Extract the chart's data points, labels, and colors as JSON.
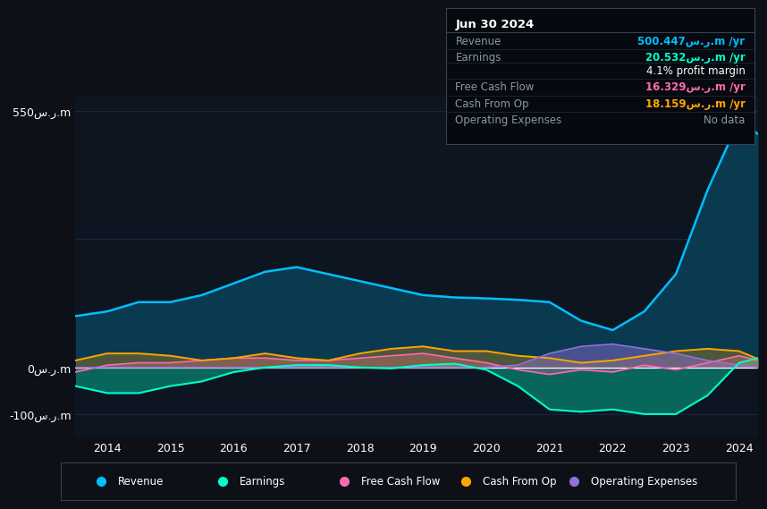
{
  "bg_color": "#0d1117",
  "plot_bg_color": "#0d1520",
  "years": [
    2013.5,
    2014,
    2014.5,
    2015,
    2015.5,
    2016,
    2016.5,
    2017,
    2017.5,
    2018,
    2018.5,
    2019,
    2019.5,
    2020,
    2020.5,
    2021,
    2021.5,
    2022,
    2022.5,
    2023,
    2023.5,
    2024,
    2024.3
  ],
  "revenue": [
    110,
    120,
    140,
    140,
    155,
    180,
    205,
    215,
    200,
    185,
    170,
    155,
    150,
    148,
    145,
    140,
    100,
    80,
    120,
    200,
    380,
    530,
    500
  ],
  "earnings": [
    -40,
    -55,
    -55,
    -40,
    -30,
    -10,
    0,
    5,
    5,
    0,
    -2,
    5,
    8,
    -5,
    -40,
    -90,
    -95,
    -90,
    -100,
    -100,
    -60,
    10,
    20
  ],
  "free_cash_flow": [
    -10,
    5,
    10,
    10,
    15,
    20,
    20,
    15,
    15,
    20,
    25,
    30,
    20,
    10,
    -5,
    -15,
    -5,
    -10,
    5,
    -5,
    10,
    25,
    15
  ],
  "cash_from_op": [
    15,
    30,
    30,
    25,
    15,
    20,
    30,
    20,
    15,
    30,
    40,
    45,
    35,
    35,
    25,
    20,
    10,
    15,
    25,
    35,
    40,
    35,
    18
  ],
  "operating_exp": [
    0,
    0,
    0,
    0,
    0,
    0,
    0,
    0,
    0,
    0,
    0,
    0,
    0,
    0,
    5,
    30,
    45,
    50,
    40,
    30,
    15,
    5,
    0
  ],
  "revenue_color": "#00bfff",
  "earnings_color": "#00ffcc",
  "fcf_color": "#ff69b4",
  "cashop_color": "#ffa500",
  "opex_color": "#9370db",
  "grid_color": "#1e3050",
  "zero_line_color": "#ffffff",
  "text_color": "#ffffff",
  "dim_text_color": "#8899aa",
  "ylim_min": -150,
  "ylim_max": 580,
  "info_box_title": "Jun 30 2024",
  "info_box_rows": [
    {
      "label": "Revenue",
      "value": "500.447س.ر.m /yr",
      "value_color": "#00bfff"
    },
    {
      "label": "Earnings",
      "value": "20.532س.ر.m /yr",
      "value_color": "#00ffcc"
    },
    {
      "label": "",
      "value": "4.1% profit margin",
      "value_color": "#ffffff"
    },
    {
      "label": "Free Cash Flow",
      "value": "16.329س.ر.m /yr",
      "value_color": "#ff69b4"
    },
    {
      "label": "Cash From Op",
      "value": "18.159س.ر.m /yr",
      "value_color": "#ffa500"
    },
    {
      "label": "Operating Expenses",
      "value": "No data",
      "value_color": "#8899aa"
    }
  ],
  "legend": [
    {
      "label": "Revenue",
      "color": "#00bfff"
    },
    {
      "label": "Earnings",
      "color": "#00ffcc"
    },
    {
      "label": "Free Cash Flow",
      "color": "#ff69b4"
    },
    {
      "label": "Cash From Op",
      "color": "#ffa500"
    },
    {
      "label": "Operating Expenses",
      "color": "#9370db"
    }
  ],
  "x_tick_years": [
    2014,
    2015,
    2016,
    2017,
    2018,
    2019,
    2020,
    2021,
    2022,
    2023,
    2024
  ],
  "yticks": [
    -100,
    0,
    550
  ],
  "ytick_labels": [
    "-100س.ر.m",
    "0س.ر.m",
    "550س.ر.m"
  ],
  "infobox_bg": "#06090f",
  "infobox_border": "#334455",
  "divider_color": "#222d3a"
}
